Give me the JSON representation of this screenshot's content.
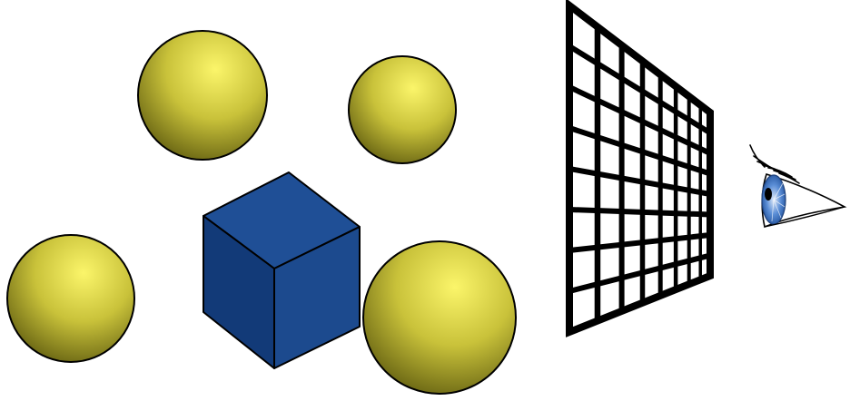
{
  "scene": {
    "background": "#ffffff",
    "objects": [
      {
        "kind": "sphere",
        "name": "sphere-top-left",
        "fill": "#c9c23a",
        "highlight": "#fbf56a",
        "shade": "#4d4a08"
      },
      {
        "kind": "sphere",
        "name": "sphere-top-right",
        "fill": "#c9c23a",
        "highlight": "#fbf56a",
        "shade": "#4d4a08"
      },
      {
        "kind": "sphere",
        "name": "sphere-bottom-left",
        "fill": "#c9c23a",
        "highlight": "#fbf56a",
        "shade": "#4d4a08"
      },
      {
        "kind": "sphere",
        "name": "sphere-bottom-right",
        "fill": "#c9c23a",
        "highlight": "#fbf56a",
        "shade": "#4d4a08"
      },
      {
        "kind": "cube",
        "name": "blue-cube",
        "top_color": "#1f4f96",
        "left_color": "#123a78",
        "right_color": "#1c4a8e"
      }
    ],
    "grid": {
      "name": "perspective-grid",
      "rows": 8,
      "cols": 8,
      "color": "#000000"
    },
    "viewer": {
      "name": "eye-icon",
      "iris_color": "#5b8ed6",
      "pupil_color": "#000000"
    }
  }
}
